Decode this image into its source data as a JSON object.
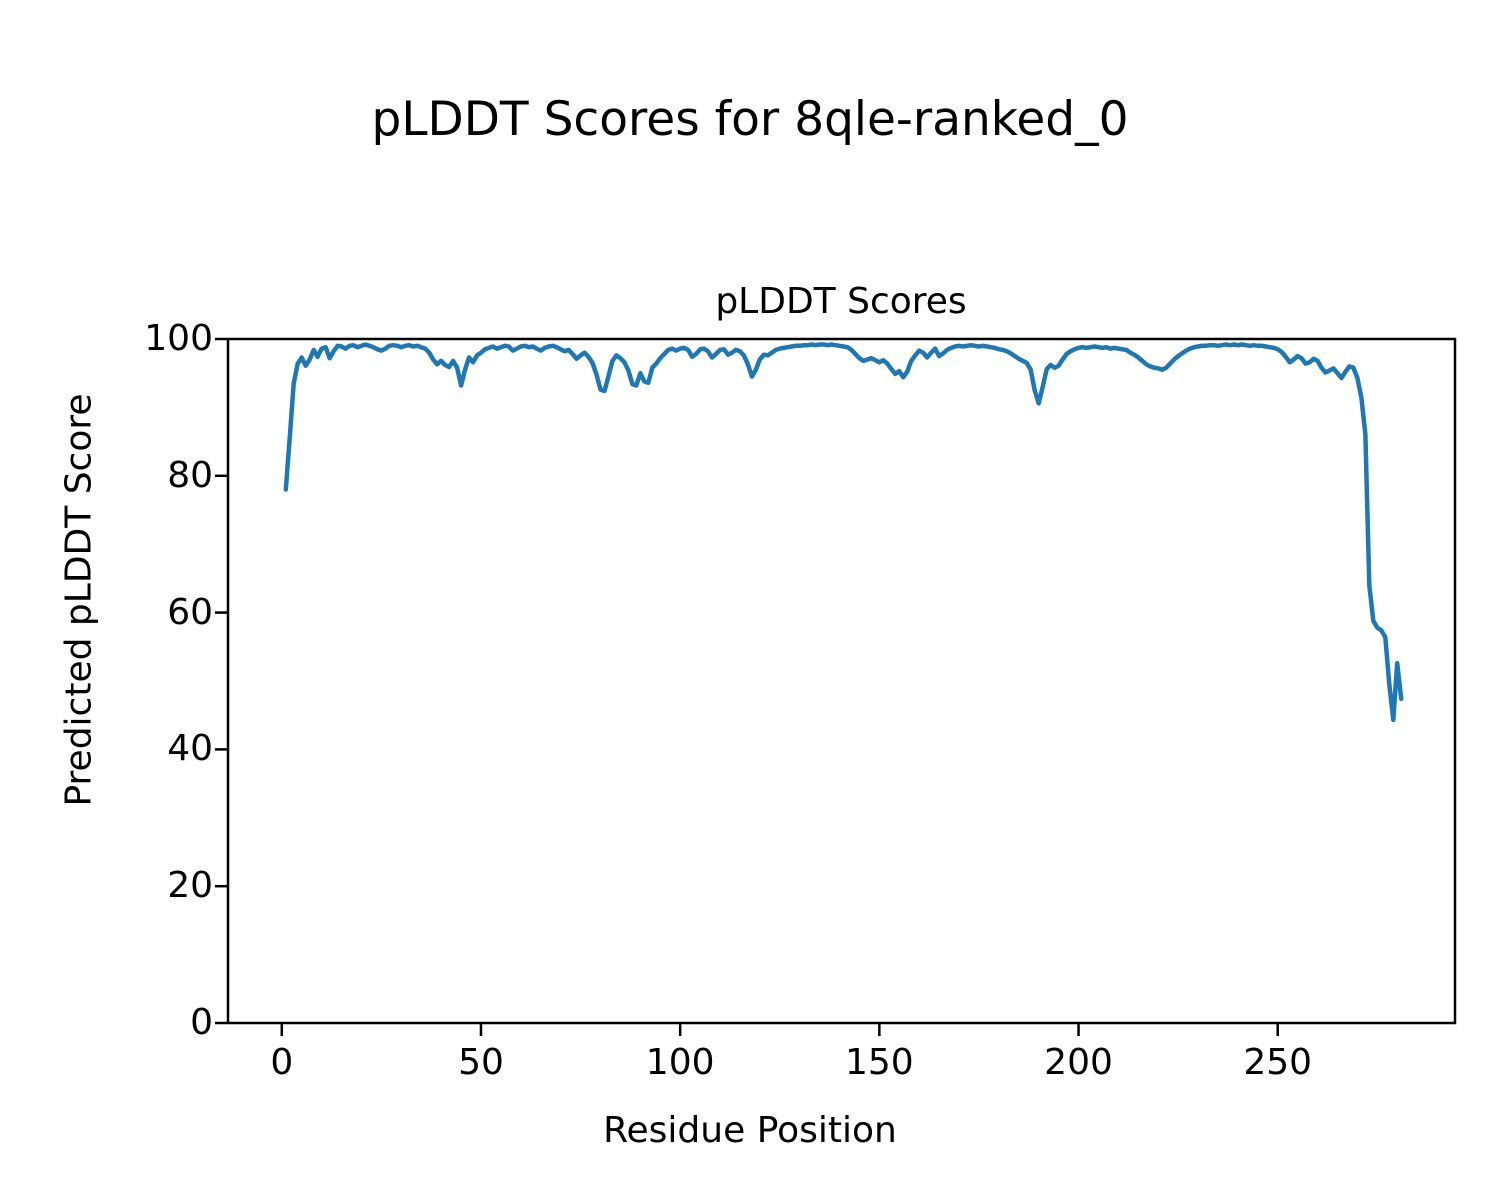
{
  "figure": {
    "suptitle": "pLDDT Scores for 8qle-ranked_0",
    "background_color": "#ffffff",
    "text_color": "#000000"
  },
  "chart_data": {
    "type": "line",
    "title": "pLDDT Scores",
    "xlabel": "Residue Position",
    "ylabel": "Predicted pLDDT Score",
    "xlim": [
      -13.5,
      294.5
    ],
    "ylim": [
      0,
      100
    ],
    "xticks": [
      0,
      50,
      100,
      150,
      200,
      250
    ],
    "yticks": [
      0,
      20,
      40,
      60,
      80,
      100
    ],
    "grid": false,
    "legend_position": "none",
    "line_color": "#1f77b4",
    "line_width": 4.5,
    "axis_color": "#000000",
    "series": [
      {
        "name": "pLDDT",
        "x_start": 1,
        "x_step": 1,
        "values": [
          78.0,
          85.5,
          93.5,
          96.4,
          97.3,
          96.1,
          97.0,
          98.4,
          97.4,
          98.6,
          98.8,
          97.2,
          98.2,
          99.0,
          98.9,
          98.6,
          99.0,
          99.1,
          98.8,
          99.0,
          99.2,
          99.0,
          98.8,
          98.5,
          98.3,
          98.6,
          99.0,
          99.1,
          99.0,
          98.8,
          99.0,
          99.1,
          98.9,
          99.0,
          98.8,
          98.6,
          98.0,
          97.0,
          96.3,
          96.8,
          96.2,
          95.9,
          96.8,
          95.8,
          93.2,
          95.5,
          97.3,
          96.6,
          97.6,
          98.0,
          98.5,
          98.7,
          98.9,
          98.6,
          98.8,
          99.0,
          98.9,
          98.3,
          98.6,
          98.9,
          99.0,
          98.8,
          98.9,
          98.6,
          98.3,
          98.7,
          98.9,
          99.0,
          98.8,
          98.5,
          98.2,
          98.4,
          97.8,
          97.1,
          97.6,
          98.0,
          97.4,
          96.5,
          94.8,
          92.6,
          92.4,
          94.5,
          96.8,
          97.6,
          97.2,
          96.6,
          95.4,
          93.4,
          93.2,
          95.0,
          93.8,
          93.6,
          95.8,
          96.4,
          97.2,
          97.8,
          98.4,
          98.6,
          98.3,
          98.6,
          98.7,
          98.4,
          97.4,
          97.8,
          98.5,
          98.6,
          98.2,
          97.3,
          97.8,
          98.4,
          98.5,
          97.7,
          98.0,
          98.4,
          98.2,
          97.6,
          96.3,
          94.5,
          95.5,
          97.0,
          97.7,
          97.6,
          98.0,
          98.4,
          98.6,
          98.7,
          98.8,
          98.9,
          99.0,
          99.0,
          99.1,
          99.1,
          99.2,
          99.1,
          99.2,
          99.2,
          99.1,
          99.2,
          99.1,
          99.0,
          98.9,
          98.8,
          98.4,
          97.8,
          97.2,
          96.8,
          97.0,
          97.2,
          96.9,
          96.6,
          96.9,
          96.4,
          95.6,
          94.9,
          95.3,
          94.4,
          95.2,
          96.8,
          97.6,
          98.3,
          98.0,
          97.3,
          98.0,
          98.6,
          97.5,
          97.9,
          98.4,
          98.7,
          98.9,
          99.0,
          98.9,
          99.0,
          99.1,
          99.0,
          98.9,
          99.0,
          98.9,
          98.8,
          98.7,
          98.5,
          98.4,
          98.2,
          97.9,
          97.5,
          97.1,
          96.8,
          96.5,
          95.5,
          92.5,
          90.6,
          93.0,
          95.6,
          96.2,
          95.8,
          96.1,
          97.0,
          97.8,
          98.2,
          98.5,
          98.7,
          98.8,
          98.7,
          98.8,
          98.9,
          98.8,
          98.7,
          98.8,
          98.6,
          98.7,
          98.6,
          98.5,
          98.4,
          98.0,
          97.7,
          97.3,
          96.8,
          96.3,
          96.0,
          95.8,
          95.7,
          95.5,
          95.8,
          96.4,
          97.0,
          97.5,
          97.9,
          98.3,
          98.6,
          98.8,
          98.9,
          99.0,
          99.0,
          99.1,
          99.1,
          99.0,
          99.1,
          99.2,
          99.1,
          99.2,
          99.1,
          99.2,
          99.1,
          99.0,
          99.1,
          99.0,
          99.0,
          98.9,
          98.8,
          98.7,
          98.5,
          98.1,
          97.4,
          96.6,
          97.0,
          97.5,
          97.2,
          96.4,
          96.6,
          97.1,
          96.8,
          95.8,
          95.1,
          95.4,
          95.7,
          95.0,
          94.3,
          95.2,
          96.0,
          95.8,
          94.3,
          91.4,
          86.0,
          64.0,
          58.8,
          57.8,
          57.4,
          56.4,
          49.5,
          44.3,
          52.6,
          47.4
        ]
      }
    ]
  }
}
